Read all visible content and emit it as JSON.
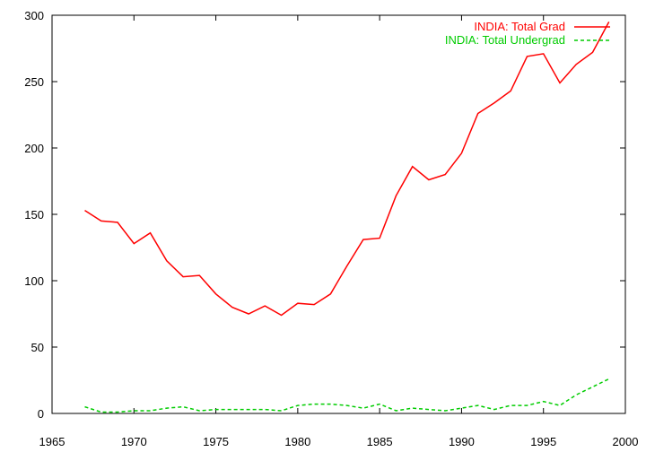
{
  "chart_data": {
    "type": "line",
    "title": "",
    "xlabel": "",
    "ylabel": "",
    "xlim": [
      1965,
      2000
    ],
    "ylim": [
      0,
      300
    ],
    "xticks": [
      1965,
      1970,
      1975,
      1980,
      1985,
      1990,
      1995,
      2000
    ],
    "yticks": [
      0,
      50,
      100,
      150,
      200,
      250,
      300
    ],
    "grid": false,
    "legend_position": "top-right",
    "series": [
      {
        "name": "INDIA: Total Grad",
        "color": "#ff0000",
        "dash": "solid",
        "x": [
          1967,
          1968,
          1969,
          1970,
          1971,
          1972,
          1973,
          1974,
          1975,
          1976,
          1977,
          1978,
          1979,
          1980,
          1981,
          1982,
          1983,
          1984,
          1985,
          1986,
          1987,
          1988,
          1989,
          1990,
          1991,
          1992,
          1993,
          1994,
          1995,
          1996,
          1997,
          1998,
          1999
        ],
        "y": [
          153,
          145,
          144,
          128,
          136,
          115,
          103,
          104,
          90,
          80,
          75,
          81,
          74,
          83,
          82,
          90,
          111,
          131,
          132,
          164,
          186,
          176,
          180,
          196,
          226,
          234,
          243,
          269,
          271,
          249,
          263,
          272,
          295
        ]
      },
      {
        "name": "INDIA: Total Undergrad",
        "color": "#00cc00",
        "dash": "dashed",
        "x": [
          1967,
          1968,
          1969,
          1970,
          1971,
          1972,
          1973,
          1974,
          1975,
          1976,
          1977,
          1978,
          1979,
          1980,
          1981,
          1982,
          1983,
          1984,
          1985,
          1986,
          1987,
          1988,
          1989,
          1990,
          1991,
          1992,
          1993,
          1994,
          1995,
          1996,
          1997,
          1998,
          1999
        ],
        "y": [
          5,
          1,
          1,
          2,
          2,
          4,
          5,
          2,
          3,
          3,
          3,
          3,
          2,
          6,
          7,
          7,
          6,
          4,
          7,
          2,
          4,
          3,
          2,
          4,
          6,
          3,
          6,
          6,
          9,
          6,
          14,
          20,
          26
        ]
      }
    ]
  }
}
